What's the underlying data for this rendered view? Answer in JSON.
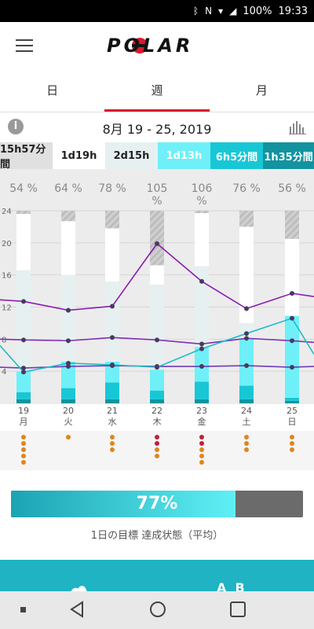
{
  "status": {
    "battery": "100%",
    "time": "19:33"
  },
  "brand": "POLAR",
  "tabs": [
    {
      "label": "日",
      "active": false
    },
    {
      "label": "週",
      "active": true
    },
    {
      "label": "月",
      "active": false
    }
  ],
  "date_range": "8月 19 - 25, 2019",
  "legend": [
    {
      "label": "15h57分間",
      "bg": "#e0e0e0",
      "fg": "#222"
    },
    {
      "label": "1d19h",
      "bg": "#ffffff",
      "fg": "#222"
    },
    {
      "label": "2d15h",
      "bg": "#e6f0f0",
      "fg": "#222"
    },
    {
      "label": "1d13h",
      "bg": "#6ff0f8",
      "fg": "#ffffff"
    },
    {
      "label": "6h5分間",
      "bg": "#18c7d6",
      "fg": "#ffffff"
    },
    {
      "label": "1h35分間",
      "bg": "#12939f",
      "fg": "#ffffff"
    }
  ],
  "goal": {
    "percent_text": "77%",
    "percent": 77,
    "label": "1日の目標 達成状態（平均）"
  },
  "bottom_card": {
    "text": "A  B"
  },
  "chart_data": {
    "type": "bar",
    "categories": [
      "19",
      "20",
      "21",
      "22",
      "23",
      "24",
      "25"
    ],
    "weekdays": [
      "月",
      "火",
      "水",
      "木",
      "金",
      "土",
      "日"
    ],
    "percent_labels": [
      "54 %",
      "64 %",
      "78 %",
      "105 %",
      "106 %",
      "76 %",
      "56 %"
    ],
    "ylim": [
      0,
      24
    ],
    "yticks": [
      4,
      8,
      12,
      16,
      20,
      24
    ],
    "stacks": [
      {
        "name": "1h35分間",
        "color": "#12939f",
        "values": [
          0.5,
          0.5,
          0.5,
          0.5,
          0.5,
          0.5,
          0.3
        ]
      },
      {
        "name": "6h5分間",
        "color": "#18c7d6",
        "values": [
          0.9,
          1.4,
          2.1,
          1.1,
          2.2,
          1.7,
          0.4
        ]
      },
      {
        "name": "1d13h",
        "color": "#6ff0f8",
        "values": [
          2.6,
          3.3,
          2.6,
          2.6,
          4.3,
          5.8,
          10.2
        ]
      },
      {
        "name": "2d15h",
        "color": "#e6f0f0",
        "values": [
          12.6,
          10.8,
          10.0,
          10.6,
          10.1,
          2.0,
          0.0
        ]
      },
      {
        "name": "1d19h",
        "color": "#ffffff",
        "values": [
          7.0,
          6.7,
          6.6,
          2.4,
          6.6,
          12.0,
          9.6
        ]
      },
      {
        "name": "15h57分間",
        "color": "#d4d4d4",
        "values": [
          0.4,
          1.3,
          2.2,
          6.8,
          0.3,
          2.0,
          3.5
        ]
      }
    ],
    "lines": [
      {
        "color": "#8a1fb0",
        "values": [
          12.7,
          11.6,
          12.1,
          19.9,
          15.2,
          11.8,
          13.7
        ],
        "ends": [
          12.9,
          13.3
        ]
      },
      {
        "color": "#7f2fb5",
        "values": [
          7.9,
          7.8,
          8.2,
          7.9,
          7.4,
          8.1,
          7.8
        ],
        "ends": [
          8.0,
          7.6
        ]
      },
      {
        "color": "#6e3bb8",
        "values": [
          4.4,
          4.6,
          4.7,
          4.6,
          4.6,
          4.7,
          4.5
        ],
        "ends": [
          4.5,
          4.6
        ]
      },
      {
        "color": "#1fbcc8",
        "values": [
          3.9,
          5.0,
          4.8,
          4.5,
          6.8,
          8.7,
          10.6
        ],
        "ends": [
          7.2,
          6.1
        ]
      }
    ],
    "dot_groups": [
      [
        "#e0861b",
        "#e0861b",
        "#e0861b",
        "#e0861b",
        "#e0861b"
      ],
      [
        "#e0861b"
      ],
      [
        "#e0861b",
        "#e0861b",
        "#e0861b"
      ],
      [
        "#c0203a",
        "#c0203a",
        "#e0861b",
        "#e0861b"
      ],
      [
        "#c0203a",
        "#c0203a",
        "#e0861b",
        "#e0861b",
        "#e0861b"
      ],
      [
        "#e0861b",
        "#e0861b",
        "#e0861b"
      ],
      [
        "#e0861b",
        "#e0861b",
        "#e0861b"
      ]
    ]
  }
}
